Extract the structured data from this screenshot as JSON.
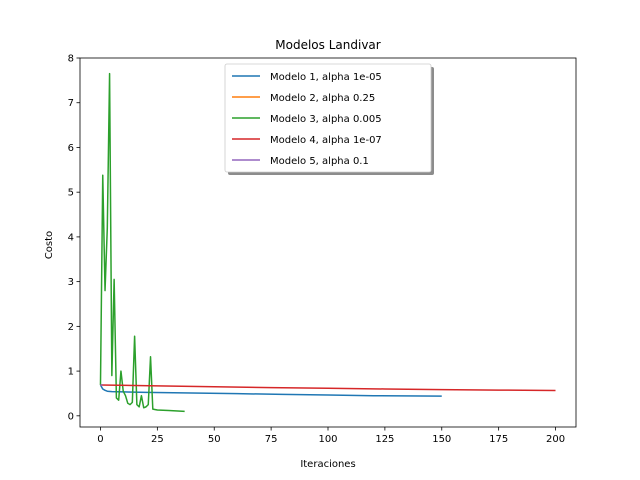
{
  "chart_data": {
    "type": "line",
    "title": "Modelos Landivar",
    "xlabel": "Iteraciones",
    "ylabel": "Costo",
    "xlim": [
      -9,
      209
    ],
    "ylim": [
      -0.25,
      8.0
    ],
    "xticks": [
      0,
      25,
      50,
      75,
      100,
      125,
      150,
      175,
      200
    ],
    "yticks": [
      0,
      1,
      2,
      3,
      4,
      5,
      6,
      7,
      8
    ],
    "grid": false,
    "legend": "upper center",
    "series": [
      {
        "name": "Modelo 1, alpha 1e-05",
        "color": "#1f77b4",
        "x": [
          0,
          1,
          2,
          3,
          5,
          10,
          20,
          40,
          60,
          80,
          100,
          120,
          150
        ],
        "y": [
          0.69,
          0.6,
          0.57,
          0.55,
          0.54,
          0.535,
          0.525,
          0.51,
          0.495,
          0.48,
          0.465,
          0.45,
          0.44
        ]
      },
      {
        "name": "Modelo 2, alpha 0.25",
        "color": "#ff7f0e",
        "x": [
          0,
          1
        ],
        "y": [
          0.69,
          0.69
        ]
      },
      {
        "name": "Modelo 3, alpha 0.005",
        "color": "#2ca02c",
        "x": [
          0,
          1,
          2,
          3,
          4,
          5,
          6,
          7,
          8,
          9,
          10,
          11,
          12,
          13,
          14,
          15,
          16,
          17,
          18,
          19,
          20,
          21,
          22,
          23,
          25,
          30,
          37
        ],
        "y": [
          0.69,
          5.38,
          2.8,
          4.2,
          7.65,
          0.9,
          3.05,
          0.4,
          0.35,
          1.0,
          0.55,
          0.45,
          0.28,
          0.25,
          0.3,
          1.78,
          0.25,
          0.2,
          0.45,
          0.18,
          0.2,
          0.25,
          1.32,
          0.15,
          0.13,
          0.12,
          0.1
        ]
      },
      {
        "name": "Modelo 4, alpha 1e-07",
        "color": "#d62728",
        "x": [
          0,
          25,
          50,
          75,
          100,
          125,
          150,
          175,
          200
        ],
        "y": [
          0.69,
          0.67,
          0.65,
          0.63,
          0.615,
          0.6,
          0.585,
          0.575,
          0.565
        ]
      },
      {
        "name": "Modelo 5, alpha 0.1",
        "color": "#9467bd",
        "x": [
          0,
          1
        ],
        "y": [
          0.69,
          0.69
        ]
      }
    ]
  }
}
